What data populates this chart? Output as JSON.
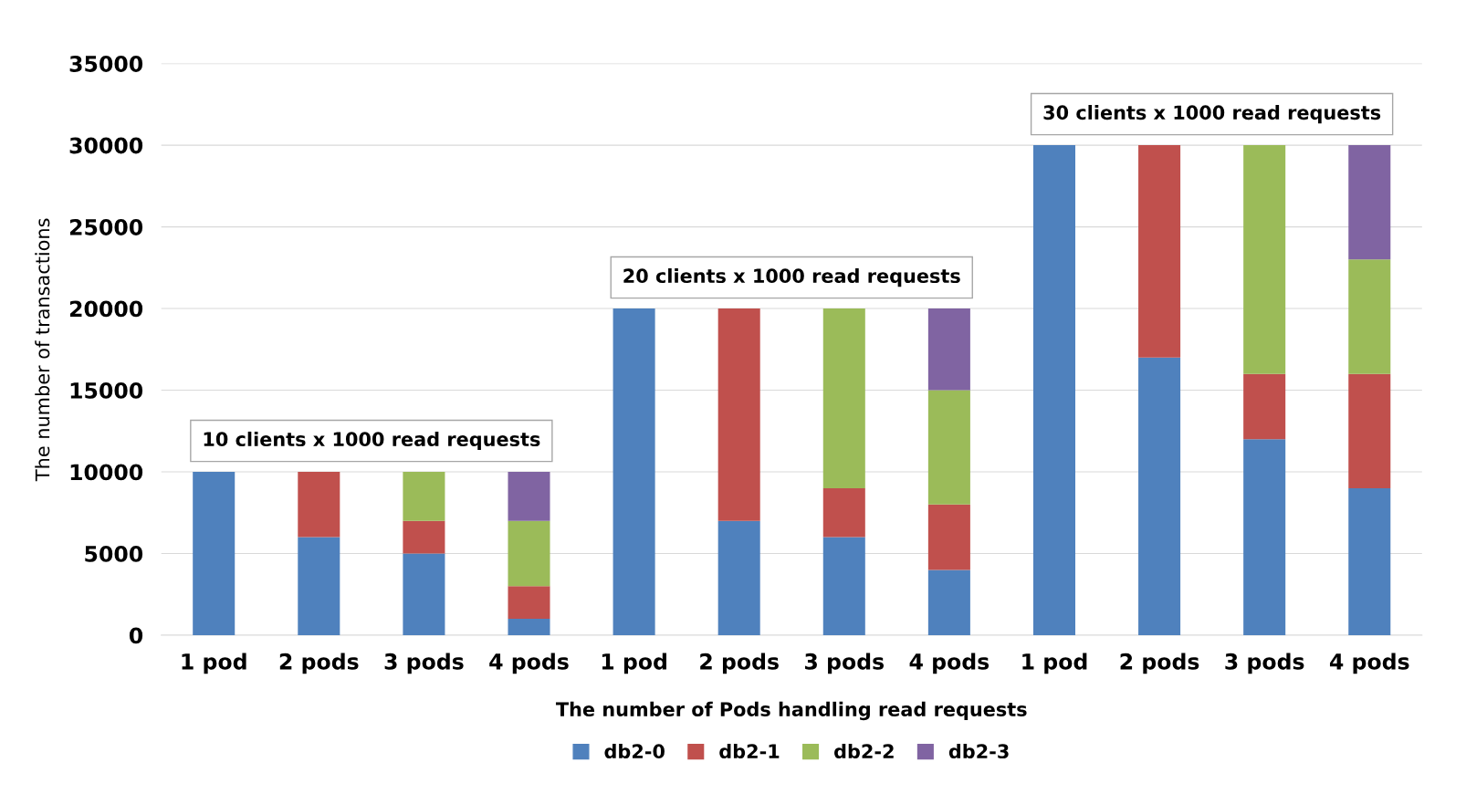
{
  "chart_data": {
    "type": "bar",
    "stacked": true,
    "categories": [
      "1 pod",
      "2 pods",
      "3 pods",
      "4 pods",
      "1 pod",
      "2 pods",
      "3 pods",
      "4 pods",
      "1 pod",
      "2 pods",
      "3 pods",
      "4 pods"
    ],
    "series": [
      {
        "name": "db2-0",
        "color": "#4f81bd",
        "values": [
          10000,
          6000,
          5000,
          1000,
          20000,
          7000,
          6000,
          4000,
          30000,
          17000,
          12000,
          9000
        ]
      },
      {
        "name": "db2-1",
        "color": "#c0504d",
        "values": [
          null,
          4000,
          2000,
          2000,
          null,
          13000,
          3000,
          4000,
          null,
          13000,
          4000,
          7000
        ]
      },
      {
        "name": "db2-2",
        "color": "#9bbb59",
        "values": [
          null,
          null,
          3000,
          4000,
          null,
          null,
          11000,
          7000,
          null,
          null,
          14000,
          7000
        ]
      },
      {
        "name": "db2-3",
        "color": "#8064a2",
        "values": [
          null,
          null,
          null,
          3000,
          null,
          null,
          null,
          5000,
          null,
          null,
          null,
          7000
        ]
      }
    ],
    "xlabel": "The number of Pods handling read requests",
    "ylabel": "The number of transactions",
    "ylim": [
      0,
      35000
    ],
    "yticks": [
      0,
      5000,
      10000,
      15000,
      20000,
      25000,
      30000,
      35000
    ],
    "grid": "y",
    "legend": "bottom",
    "annotations": [
      "10 clients x 1000 read requests",
      "20 clients x 1000 read requests",
      "30 clients x 1000 read requests"
    ]
  }
}
